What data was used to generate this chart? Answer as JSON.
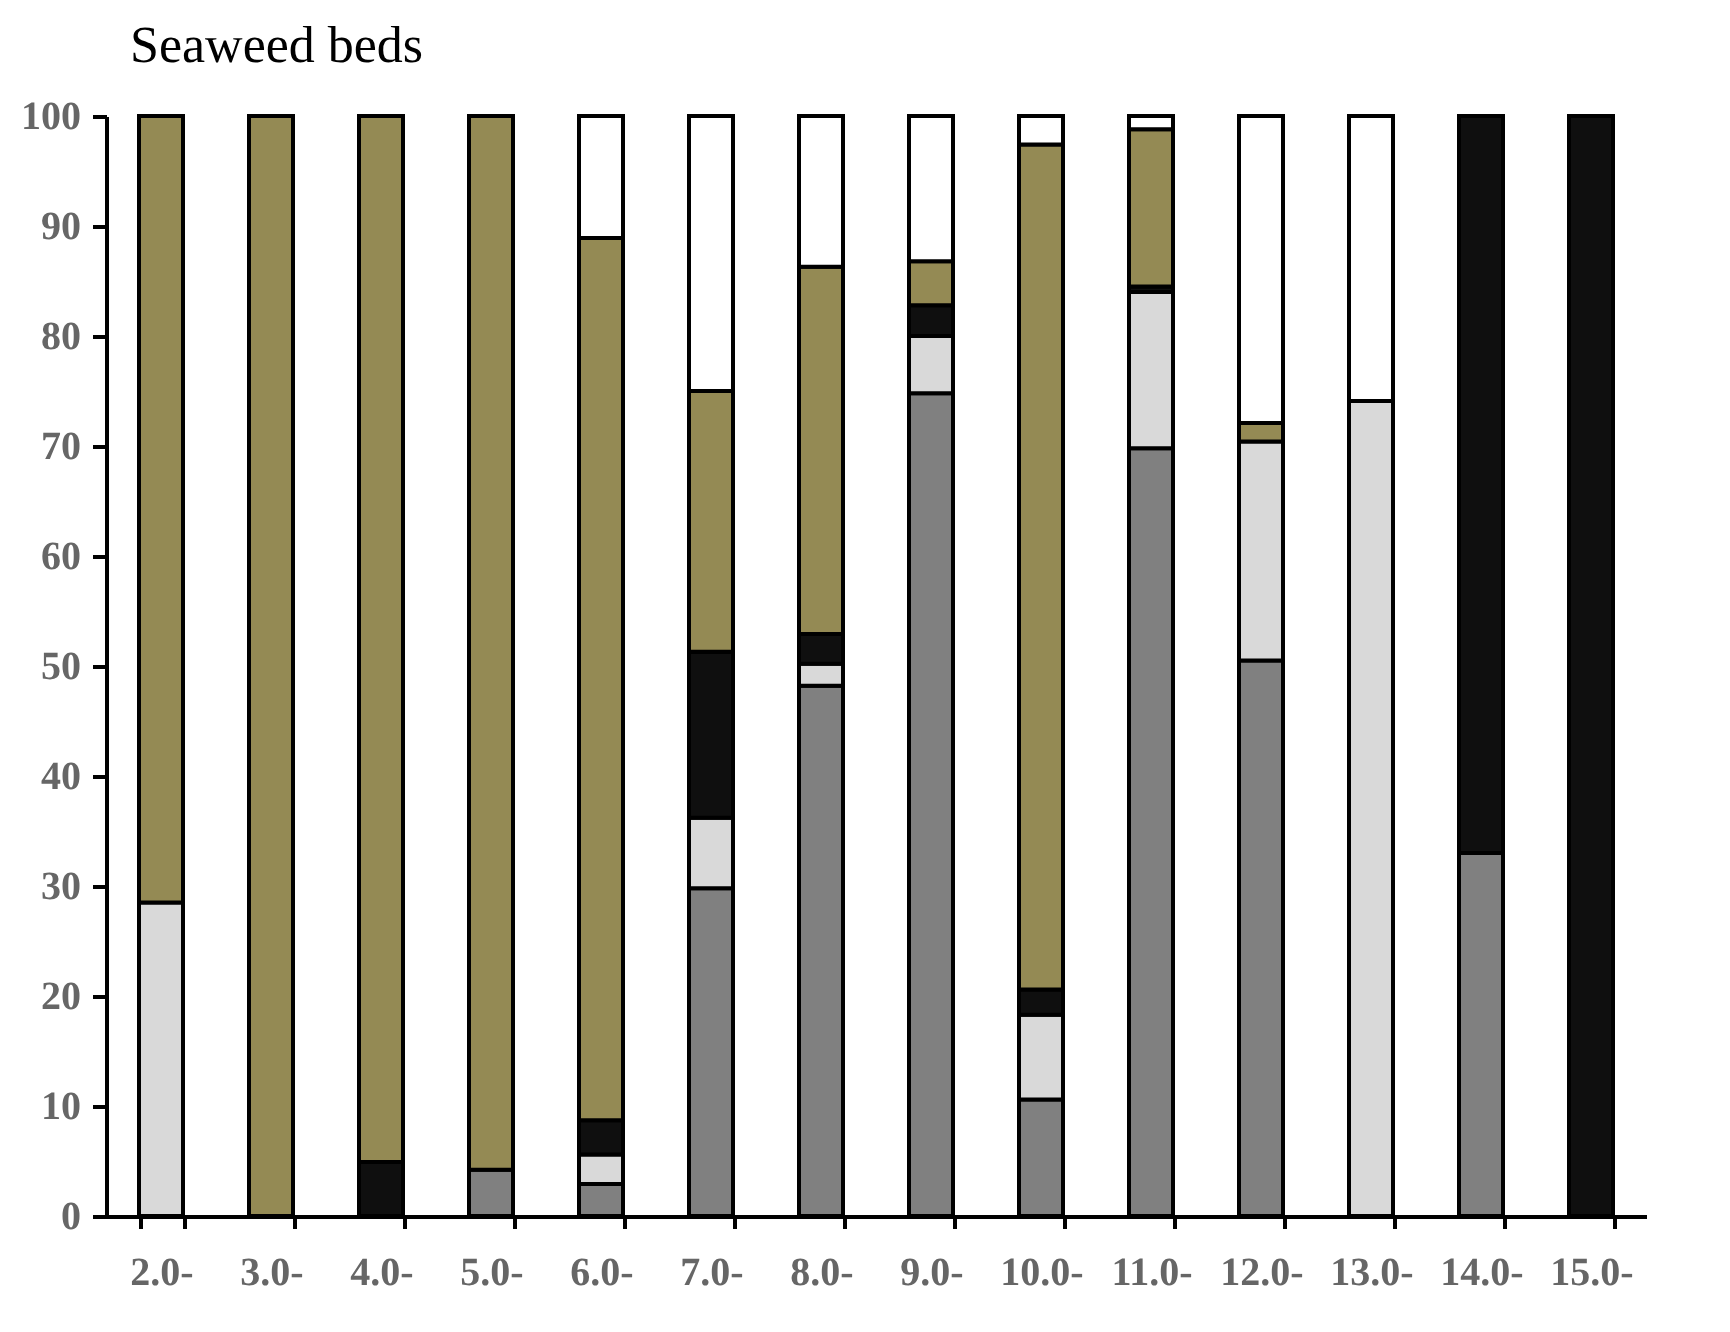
{
  "chart_data": {
    "type": "bar",
    "stacked": true,
    "title": "Seaweed beds",
    "categories": [
      "2.0-",
      "3.0-",
      "4.0-",
      "5.0-",
      "6.0-",
      "7.0-",
      "8.0-",
      "9.0-",
      "10.0-",
      "11.0-",
      "12.0-",
      "13.0-",
      "14.0-",
      "15.0-"
    ],
    "series": [
      {
        "color": "#808080",
        "values": [
          null,
          null,
          null,
          4.2,
          2.9,
          29.8,
          48.2,
          74.8,
          10.6,
          69.8,
          50.5,
          null,
          33.0,
          null
        ]
      },
      {
        "color": "#d9d9d9",
        "values": [
          28.5,
          null,
          null,
          null,
          2.7,
          6.4,
          2.0,
          5.2,
          7.7,
          14.2,
          19.9,
          74.1,
          null,
          null
        ]
      },
      {
        "color": "#0f0f0f",
        "values": [
          null,
          null,
          4.9,
          null,
          3.1,
          15.1,
          2.7,
          2.8,
          2.3,
          0.5,
          null,
          null,
          67.0,
          100
        ]
      },
      {
        "color": "#948a54",
        "values": [
          71.5,
          100,
          95.1,
          95.8,
          80.2,
          23.7,
          33.4,
          4.0,
          76.8,
          14.3,
          1.7,
          null,
          null,
          null
        ]
      },
      {
        "color": "#ffffff",
        "values": [
          null,
          null,
          null,
          null,
          11.1,
          25.0,
          13.7,
          13.2,
          2.6,
          1.2,
          27.9,
          25.9,
          null,
          null
        ]
      }
    ],
    "ylim": [
      0,
      100
    ],
    "yticks": [
      0,
      10,
      20,
      30,
      40,
      50,
      60,
      70,
      80,
      90,
      100
    ],
    "grid": false,
    "legend": false
  }
}
